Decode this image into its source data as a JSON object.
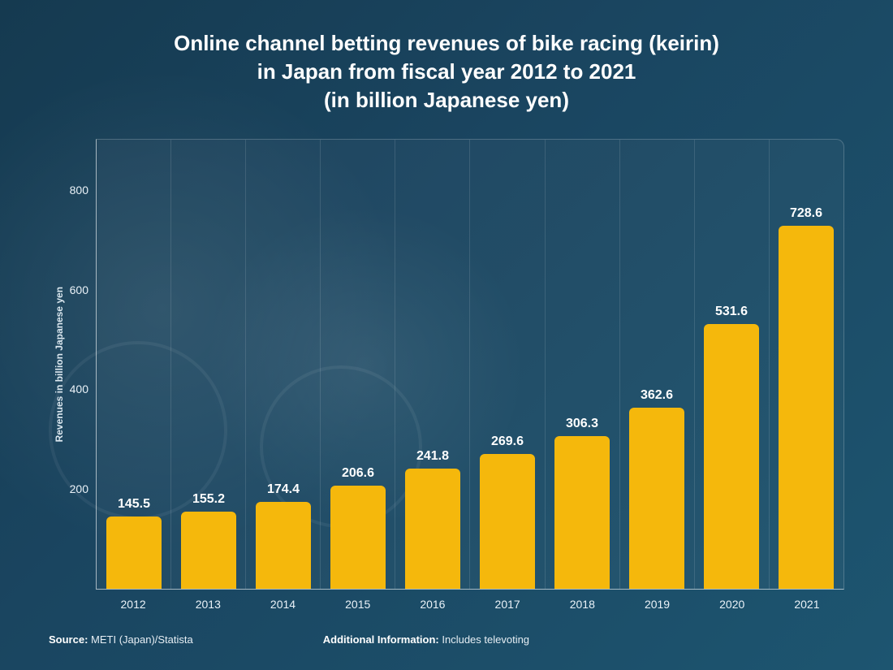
{
  "chart": {
    "type": "bar",
    "title_lines": [
      "Online channel betting revenues of bike racing (keirin)",
      "in Japan from fiscal year 2012 to 2021",
      "(in billion Japanese yen)"
    ],
    "title_fontsize": 26,
    "title_color": "#ffffff",
    "ylabel": "Revenues in billion Japanese yen",
    "ylabel_fontsize": 12,
    "categories": [
      "2012",
      "2013",
      "2014",
      "2015",
      "2016",
      "2017",
      "2018",
      "2019",
      "2020",
      "2021"
    ],
    "values": [
      145.5,
      155.2,
      174.4,
      206.6,
      241.8,
      269.6,
      306.3,
      362.6,
      531.6,
      728.6
    ],
    "value_labels": [
      "145.5",
      "155.2",
      "174.4",
      "206.6",
      "241.8",
      "269.6",
      "306.3",
      "362.6",
      "531.6",
      "728.6"
    ],
    "bar_color": "#f5b80c",
    "bar_border_radius": 6,
    "value_label_fontsize": 16,
    "value_label_color": "#ffffff",
    "tick_fontsize": 14,
    "tick_color": "#eaf2f8",
    "background_gradient": [
      "#153a50",
      "#1d5570"
    ],
    "plot_bg": "rgba(255,255,255,0.03)",
    "grid_color": "rgba(255,255,255,0.12)",
    "axis_color": "rgba(255,255,255,0.6)",
    "ylim": [
      0,
      900
    ],
    "yticks": [
      200,
      400,
      600,
      800
    ],
    "ytick_labels": [
      "200",
      "400",
      "600",
      "800"
    ],
    "footer": {
      "source_label": "Source:",
      "source_value": "METI (Japan)/Statista",
      "info_label": "Additional Information:",
      "info_value": "Includes televoting",
      "fontsize": 13
    }
  }
}
